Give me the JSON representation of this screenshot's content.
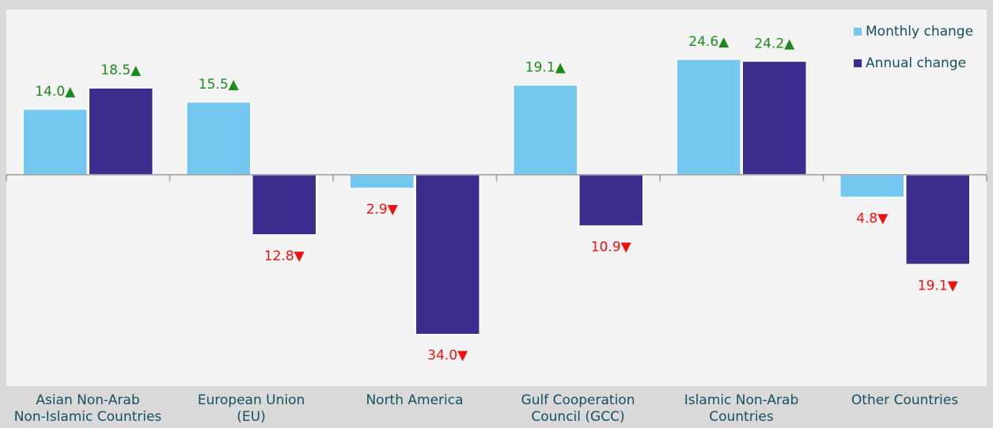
{
  "chart_data": {
    "type": "bar",
    "categories": [
      "Asian Non-Arab\nNon-Islamic Countries",
      "European Union\n(EU)",
      "North America",
      "Gulf Cooperation\nCouncil (GCC)",
      "Islamic Non-Arab\nCountries",
      "Other Countries"
    ],
    "series": [
      {
        "name": "Monthly change",
        "color": "#74c7ef",
        "values": [
          14.0,
          15.5,
          -2.9,
          19.1,
          24.6,
          -4.8
        ],
        "value_labels": [
          "14.0▲",
          "15.5▲",
          "2.9▼",
          "19.1▲",
          "24.6▲",
          "4.8▼"
        ]
      },
      {
        "name": "Annual change",
        "color": "#3b2e8e",
        "values": [
          18.5,
          -12.8,
          -34.0,
          -10.9,
          24.2,
          -19.1
        ],
        "value_labels": [
          "18.5▲",
          "12.8▼",
          "34.0▼",
          "10.9▼",
          "24.2▲",
          "19.1▼"
        ]
      }
    ],
    "ylim": [
      -45,
      35.2
    ],
    "legend": "top-right"
  }
}
